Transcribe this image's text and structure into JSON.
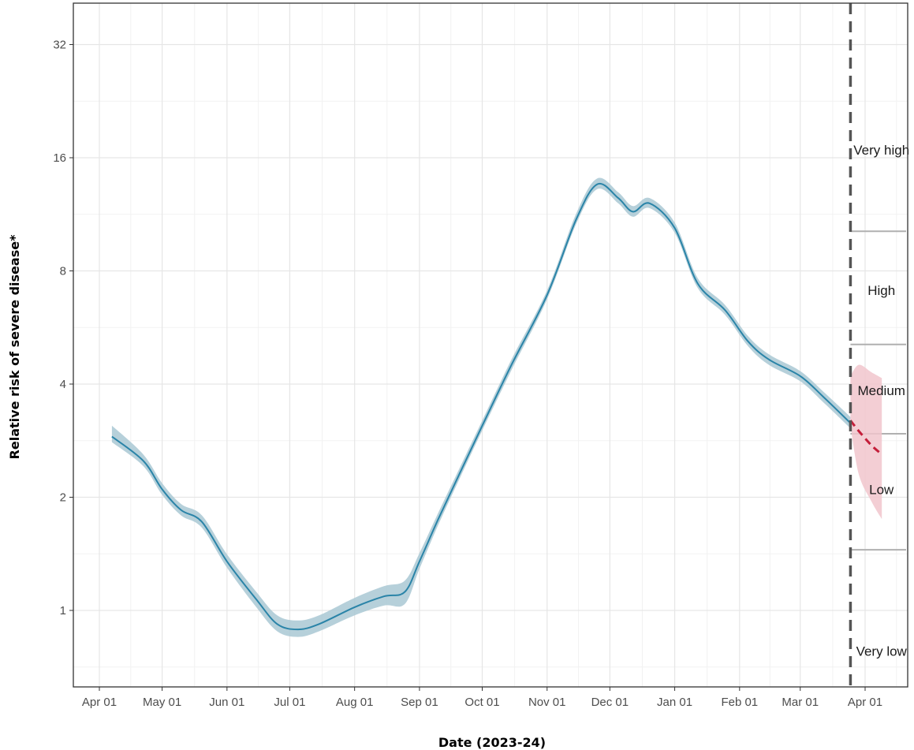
{
  "chart_data": {
    "type": "line",
    "title": "",
    "xlabel": "Date (2023-24)",
    "ylabel": "Relative risk of severe disease*",
    "y_scale": "log2",
    "ylim": [
      0.65,
      40
    ],
    "xlim": [
      "2023-03-23",
      "2024-04-20"
    ],
    "grid": true,
    "x_ticks": [
      {
        "date": "2023-04-01",
        "label": "Apr 01"
      },
      {
        "date": "2023-05-01",
        "label": "May 01"
      },
      {
        "date": "2023-06-01",
        "label": "Jun 01"
      },
      {
        "date": "2023-07-01",
        "label": "Jul 01"
      },
      {
        "date": "2023-08-01",
        "label": "Aug 01"
      },
      {
        "date": "2023-09-01",
        "label": "Sep 01"
      },
      {
        "date": "2023-10-01",
        "label": "Oct 01"
      },
      {
        "date": "2023-11-01",
        "label": "Nov 01"
      },
      {
        "date": "2023-12-01",
        "label": "Dec 01"
      },
      {
        "date": "2024-01-01",
        "label": "Jan 01"
      },
      {
        "date": "2024-02-01",
        "label": "Feb 01"
      },
      {
        "date": "2024-03-01",
        "label": "Mar 01"
      },
      {
        "date": "2024-04-01",
        "label": "Apr 01"
      }
    ],
    "y_ticks": [
      {
        "value": 1,
        "label": "1"
      },
      {
        "value": 2,
        "label": "2"
      },
      {
        "value": 4,
        "label": "4"
      },
      {
        "value": 8,
        "label": "8"
      },
      {
        "value": 16,
        "label": "16"
      },
      {
        "value": 32,
        "label": "32"
      }
    ],
    "series": [
      {
        "color": "#2a84a8",
        "band_color": "#a9c8d4",
        "points": [
          {
            "date": "2023-04-07",
            "y": 2.9,
            "lo": 2.8,
            "hi": 3.1
          },
          {
            "date": "2023-04-22",
            "y": 2.5,
            "lo": 2.42,
            "hi": 2.6
          },
          {
            "date": "2023-05-01",
            "y": 2.1,
            "lo": 2.03,
            "hi": 2.18
          },
          {
            "date": "2023-05-10",
            "y": 1.85,
            "lo": 1.79,
            "hi": 1.92
          },
          {
            "date": "2023-05-20",
            "y": 1.72,
            "lo": 1.66,
            "hi": 1.79
          },
          {
            "date": "2023-06-01",
            "y": 1.35,
            "lo": 1.3,
            "hi": 1.41
          },
          {
            "date": "2023-06-15",
            "y": 1.07,
            "lo": 1.02,
            "hi": 1.12
          },
          {
            "date": "2023-06-25",
            "y": 0.92,
            "lo": 0.88,
            "hi": 0.97
          },
          {
            "date": "2023-07-05",
            "y": 0.89,
            "lo": 0.85,
            "hi": 0.94
          },
          {
            "date": "2023-07-15",
            "y": 0.92,
            "lo": 0.88,
            "hi": 0.97
          },
          {
            "date": "2023-08-01",
            "y": 1.02,
            "lo": 0.97,
            "hi": 1.08
          },
          {
            "date": "2023-08-15",
            "y": 1.09,
            "lo": 1.03,
            "hi": 1.16
          },
          {
            "date": "2023-08-25",
            "y": 1.12,
            "lo": 1.04,
            "hi": 1.2
          },
          {
            "date": "2023-09-01",
            "y": 1.35,
            "lo": 1.29,
            "hi": 1.42
          },
          {
            "date": "2023-09-10",
            "y": 1.75,
            "lo": 1.69,
            "hi": 1.82
          },
          {
            "date": "2023-09-20",
            "y": 2.3,
            "lo": 2.23,
            "hi": 2.38
          },
          {
            "date": "2023-10-01",
            "y": 3.1,
            "lo": 3.01,
            "hi": 3.2
          },
          {
            "date": "2023-10-15",
            "y": 4.5,
            "lo": 4.36,
            "hi": 4.65
          },
          {
            "date": "2023-11-01",
            "y": 6.9,
            "lo": 6.72,
            "hi": 7.1
          },
          {
            "date": "2023-11-15",
            "y": 11.0,
            "lo": 10.7,
            "hi": 11.4
          },
          {
            "date": "2023-11-25",
            "y": 13.6,
            "lo": 13.2,
            "hi": 14.1
          },
          {
            "date": "2023-12-05",
            "y": 12.5,
            "lo": 12.1,
            "hi": 12.95
          },
          {
            "date": "2023-12-12",
            "y": 11.5,
            "lo": 11.15,
            "hi": 11.9
          },
          {
            "date": "2023-12-20",
            "y": 12.1,
            "lo": 11.75,
            "hi": 12.5
          },
          {
            "date": "2024-01-01",
            "y": 10.4,
            "lo": 10.1,
            "hi": 10.75
          },
          {
            "date": "2024-01-12",
            "y": 7.4,
            "lo": 7.2,
            "hi": 7.65
          },
          {
            "date": "2024-01-25",
            "y": 6.3,
            "lo": 6.12,
            "hi": 6.5
          },
          {
            "date": "2024-02-05",
            "y": 5.2,
            "lo": 5.05,
            "hi": 5.37
          },
          {
            "date": "2024-02-15",
            "y": 4.65,
            "lo": 4.5,
            "hi": 4.8
          },
          {
            "date": "2024-03-01",
            "y": 4.2,
            "lo": 4.07,
            "hi": 4.33
          },
          {
            "date": "2024-03-12",
            "y": 3.7,
            "lo": 3.58,
            "hi": 3.82
          },
          {
            "date": "2024-03-25",
            "y": 3.15,
            "lo": 3.05,
            "hi": 3.27
          }
        ]
      },
      {
        "color": "#c41e3a",
        "band_color": "#f1c5cc",
        "dashed": true,
        "points": [
          {
            "date": "2024-03-25",
            "y": 3.2,
            "lo": 3.1,
            "hi": 4.2
          },
          {
            "date": "2024-03-29",
            "y": 3.0,
            "lo": 2.3,
            "hi": 4.5
          },
          {
            "date": "2024-04-04",
            "y": 2.75,
            "lo": 1.95,
            "hi": 4.3
          },
          {
            "date": "2024-04-09",
            "y": 2.6,
            "lo": 1.75,
            "hi": 4.15
          }
        ]
      }
    ],
    "reference_line_date": "2024-03-25",
    "threshold_lines": [
      1.45,
      2.95,
      5.1,
      10.2
    ],
    "risk_levels": [
      {
        "label": "Very high",
        "y": 16.8
      },
      {
        "label": "High",
        "y": 7.1
      },
      {
        "label": "Medium",
        "y": 3.85
      },
      {
        "label": "Low",
        "y": 2.1
      },
      {
        "label": "Very low",
        "y": 0.78
      }
    ]
  }
}
